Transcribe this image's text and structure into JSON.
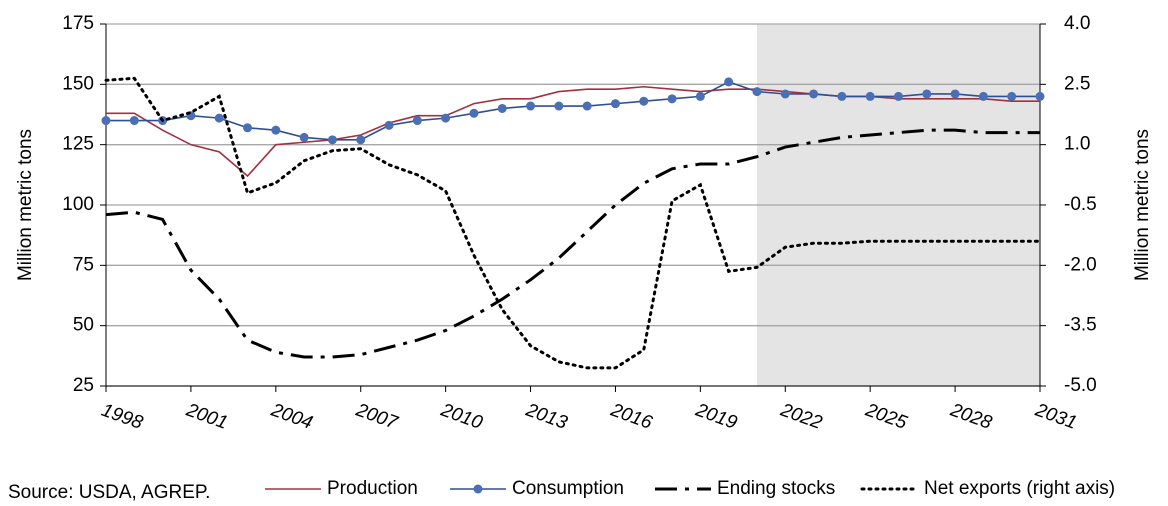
{
  "chart_data": {
    "type": "line",
    "source": "Source: USDA, AGREP.",
    "ylabel": "Million metric tons",
    "y2label": "Million metric tons",
    "x": [
      1998,
      1999,
      2000,
      2001,
      2002,
      2003,
      2004,
      2005,
      2006,
      2007,
      2008,
      2009,
      2010,
      2011,
      2012,
      2013,
      2014,
      2015,
      2016,
      2017,
      2018,
      2019,
      2020,
      2021,
      2022,
      2023,
      2024,
      2025,
      2026,
      2027,
      2028,
      2029,
      2030,
      2031
    ],
    "xlim": [
      1998,
      2031
    ],
    "xticks": [
      1998,
      2001,
      2004,
      2007,
      2010,
      2013,
      2016,
      2019,
      2022,
      2025,
      2028,
      2031
    ],
    "ylim": [
      25,
      175
    ],
    "yticks": [
      25,
      50,
      75,
      100,
      125,
      150,
      175
    ],
    "y2lim": [
      -5,
      4
    ],
    "y2ticks": [
      {
        "value": -5,
        "label": "-5.0"
      },
      -3.5,
      {
        "value": -2,
        "label": "-2.0"
      },
      -0.5,
      {
        "value": 1,
        "label": "1.0"
      },
      2.5,
      {
        "value": 4,
        "label": "4.0"
      }
    ],
    "grid": true,
    "shaded_xrange": [
      2021,
      2031
    ],
    "series": [
      {
        "name": "Production",
        "color": "#a3303f",
        "style": "solid",
        "marker": false,
        "values": [
          138,
          138,
          131,
          125,
          122,
          112,
          125,
          126,
          127,
          129,
          134,
          137,
          137,
          142,
          144,
          144,
          147,
          148,
          148,
          149,
          148,
          147,
          148,
          148,
          147,
          146,
          145,
          145,
          144,
          144,
          144,
          144,
          143,
          143
        ]
      },
      {
        "name": "Consumption",
        "color": "#2f4f93",
        "style": "solid",
        "marker": true,
        "values": [
          135,
          135,
          135,
          137,
          136,
          132,
          131,
          128,
          127,
          127,
          133,
          135,
          136,
          138,
          140,
          141,
          141,
          141,
          142,
          143,
          144,
          145,
          151,
          147,
          146,
          146,
          145,
          145,
          145,
          146,
          146,
          145,
          145,
          145
        ]
      },
      {
        "name": "Ending stocks",
        "color": "#000000",
        "style": "dashdot",
        "marker": false,
        "values": [
          96,
          97,
          94,
          73,
          61,
          44,
          39,
          37,
          37,
          38,
          41,
          44,
          48,
          54,
          61,
          69,
          78,
          89,
          100,
          109,
          115,
          117,
          117,
          120,
          124,
          126,
          128,
          129,
          130,
          131,
          131,
          130,
          130,
          130
        ]
      },
      {
        "name": "Net exports (right axis)",
        "color": "#000000",
        "style": "dotted",
        "marker": false,
        "axis": "y2",
        "values": [
          2.6,
          2.65,
          1.6,
          1.8,
          2.2,
          -0.2,
          0.05,
          0.6,
          0.85,
          0.9,
          0.5,
          0.25,
          -0.15,
          -1.75,
          -3.1,
          -4.0,
          -4.4,
          -4.55,
          -4.55,
          -4.1,
          -0.4,
          0.0,
          -2.15,
          -2.05,
          -1.55,
          -1.45,
          -1.45,
          -1.4,
          -1.4,
          -1.4,
          -1.4,
          -1.4,
          -1.4,
          -1.4
        ]
      }
    ]
  }
}
